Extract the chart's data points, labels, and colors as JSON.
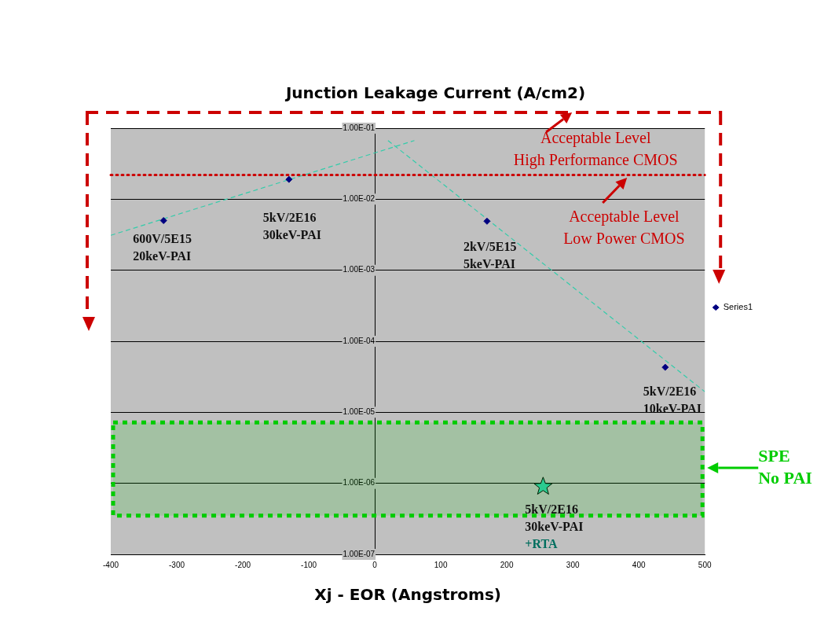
{
  "chart_data": {
    "type": "scatter",
    "title": "Junction Leakage Current (A/cm2)",
    "xlabel": "Xj - EOR (Angstroms)",
    "xlim": [
      -400,
      500
    ],
    "xticks": [
      -400,
      -300,
      -200,
      -100,
      0,
      100,
      200,
      300,
      400,
      500
    ],
    "ylim": [
      1e-07,
      0.1
    ],
    "yticks": [
      {
        "value": 1e-07,
        "label": "1.00E-07"
      },
      {
        "value": 1e-06,
        "label": "1.00E-06"
      },
      {
        "value": 1e-05,
        "label": "1.00E-05"
      },
      {
        "value": 0.0001,
        "label": "1.00E-04"
      },
      {
        "value": 0.001,
        "label": "1.00E-03"
      },
      {
        "value": 0.01,
        "label": "1.00E-02"
      },
      {
        "value": 0.1,
        "label": "1.00E-01"
      }
    ],
    "log": "y",
    "grid": "y",
    "legend": "right",
    "series": [
      {
        "name": "Series1",
        "marker": "diamond",
        "color": "#000080",
        "x": [
          -320,
          -130,
          170,
          440
        ],
        "values": [
          0.005,
          0.019,
          0.0049,
          4.3e-05
        ]
      },
      {
        "type": "scatter",
        "marker": "star",
        "color": "#33ccaa",
        "x": [
          255
        ],
        "values": [
          9e-07
        ]
      },
      {
        "type": "line",
        "marker": "none",
        "line_style": "dashed",
        "color": "#33ccaa",
        "x": [
          -400,
          60
        ],
        "values": [
          0.0031,
          0.067
        ]
      },
      {
        "type": "line",
        "marker": "none",
        "line_style": "dashed",
        "color": "#33ccaa",
        "x": [
          20,
          500
        ],
        "values": [
          0.067,
          1.95e-05
        ]
      }
    ],
    "ref_lines": [
      {
        "axis": "y",
        "value": 0.022,
        "color": "#cc0000",
        "line_style": "dotted"
      }
    ],
    "bands": [
      {
        "axis": "y",
        "from": 3.5e-07,
        "to": 7.2e-06,
        "color": "#00cc00"
      }
    ],
    "annotations": [
      {
        "text": "600V/5E15\n20keV-PAI",
        "x": -320,
        "y": 0.005
      },
      {
        "text": "5kV/2E16\n30keV-PAI",
        "x": -130,
        "y": 0.019
      },
      {
        "text": "2kV/5E15\n5keV-PAI",
        "x": 170,
        "y": 0.0049
      },
      {
        "text": "5kV/2E16\n10keV-PAI",
        "x": 440,
        "y": 4.3e-05
      },
      {
        "text": "5kV/2E16\n30keV-PAI",
        "x": 255,
        "y": 9e-07
      },
      "+RTA",
      "Acceptable Level\nHigh Performance CMOS",
      {
        "text": "Acceptable Level\nLow Power CMOS",
        "x": 380,
        "y": 0.022
      },
      "SPE\nNo PAI"
    ]
  }
}
